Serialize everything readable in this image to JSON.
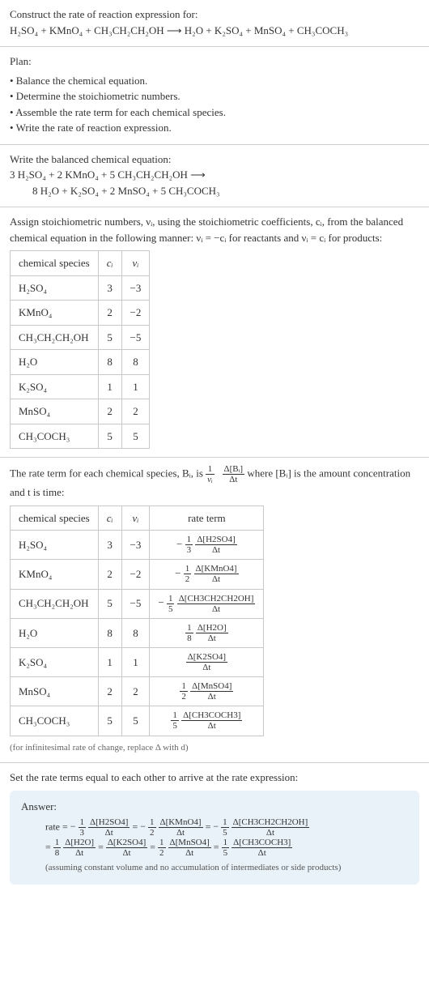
{
  "s1": {
    "lead": "Construct the rate of reaction expression for:",
    "equation": "H₂SO₄ + KMnO₄ + CH₃CH₂CH₂OH ⟶ H₂O + K₂SO₄ + MnSO₄ + CH₃COCH₃"
  },
  "s2": {
    "head": "Plan:",
    "items": [
      "• Balance the chemical equation.",
      "• Determine the stoichiometric numbers.",
      "• Assemble the rate term for each chemical species.",
      "• Write the rate of reaction expression."
    ]
  },
  "s3": {
    "head": "Write the balanced chemical equation:",
    "line1": "3 H₂SO₄ + 2 KMnO₄ + 5 CH₃CH₂CH₂OH ⟶",
    "line2": "8 H₂O + K₂SO₄ + 2 MnSO₄ + 5 CH₃COCH₃"
  },
  "s4": {
    "text": "Assign stoichiometric numbers, νᵢ, using the stoichiometric coefficients, cᵢ, from the balanced chemical equation in the following manner: νᵢ = −cᵢ for reactants and νᵢ = cᵢ for products:",
    "headers": [
      "chemical species",
      "cᵢ",
      "νᵢ"
    ],
    "rows": [
      [
        "H₂SO₄",
        "3",
        "−3"
      ],
      [
        "KMnO₄",
        "2",
        "−2"
      ],
      [
        "CH₃CH₂CH₂OH",
        "5",
        "−5"
      ],
      [
        "H₂O",
        "8",
        "8"
      ],
      [
        "K₂SO₄",
        "1",
        "1"
      ],
      [
        "MnSO₄",
        "2",
        "2"
      ],
      [
        "CH₃COCH₃",
        "5",
        "5"
      ]
    ]
  },
  "s5": {
    "text_a": "The rate term for each chemical species, Bᵢ, is ",
    "frac1_num": "1",
    "frac1_den": "νᵢ",
    "frac2_num": "Δ[Bᵢ]",
    "frac2_den": "Δt",
    "text_b": " where [Bᵢ] is the amount concentration and t is time:",
    "headers": [
      "chemical species",
      "cᵢ",
      "νᵢ",
      "rate term"
    ],
    "rows": [
      {
        "sp": "H₂SO₄",
        "c": "3",
        "v": "−3",
        "sign": "−",
        "fn": "1",
        "fd": "3",
        "dn": "Δ[H2SO4]",
        "dd": "Δt"
      },
      {
        "sp": "KMnO₄",
        "c": "2",
        "v": "−2",
        "sign": "−",
        "fn": "1",
        "fd": "2",
        "dn": "Δ[KMnO4]",
        "dd": "Δt"
      },
      {
        "sp": "CH₃CH₂CH₂OH",
        "c": "5",
        "v": "−5",
        "sign": "−",
        "fn": "1",
        "fd": "5",
        "dn": "Δ[CH3CH2CH2OH]",
        "dd": "Δt"
      },
      {
        "sp": "H₂O",
        "c": "8",
        "v": "8",
        "sign": "",
        "fn": "1",
        "fd": "8",
        "dn": "Δ[H2O]",
        "dd": "Δt"
      },
      {
        "sp": "K₂SO₄",
        "c": "1",
        "v": "1",
        "sign": "",
        "fn": "",
        "fd": "",
        "dn": "Δ[K2SO4]",
        "dd": "Δt"
      },
      {
        "sp": "MnSO₄",
        "c": "2",
        "v": "2",
        "sign": "",
        "fn": "1",
        "fd": "2",
        "dn": "Δ[MnSO4]",
        "dd": "Δt"
      },
      {
        "sp": "CH₃COCH₃",
        "c": "5",
        "v": "5",
        "sign": "",
        "fn": "1",
        "fd": "5",
        "dn": "Δ[CH3COCH3]",
        "dd": "Δt"
      }
    ],
    "foot": "(for infinitesimal rate of change, replace Δ with d)"
  },
  "s6": {
    "text": "Set the rate terms equal to each other to arrive at the rate expression:"
  },
  "answer": {
    "hdr": "Answer:",
    "lead": "rate = ",
    "terms": [
      {
        "sign": "−",
        "fn": "1",
        "fd": "3",
        "dn": "Δ[H2SO4]",
        "dd": "Δt"
      },
      {
        "sign": "−",
        "fn": "1",
        "fd": "2",
        "dn": "Δ[KMnO4]",
        "dd": "Δt"
      },
      {
        "sign": "−",
        "fn": "1",
        "fd": "5",
        "dn": "Δ[CH3CH2CH2OH]",
        "dd": "Δt"
      },
      {
        "sign": "",
        "fn": "1",
        "fd": "8",
        "dn": "Δ[H2O]",
        "dd": "Δt"
      },
      {
        "sign": "",
        "fn": "",
        "fd": "",
        "dn": "Δ[K2SO4]",
        "dd": "Δt"
      },
      {
        "sign": "",
        "fn": "1",
        "fd": "2",
        "dn": "Δ[MnSO4]",
        "dd": "Δt"
      },
      {
        "sign": "",
        "fn": "1",
        "fd": "5",
        "dn": "Δ[CH3COCH3]",
        "dd": "Δt"
      }
    ],
    "note": "(assuming constant volume and no accumulation of intermediates or side products)"
  }
}
